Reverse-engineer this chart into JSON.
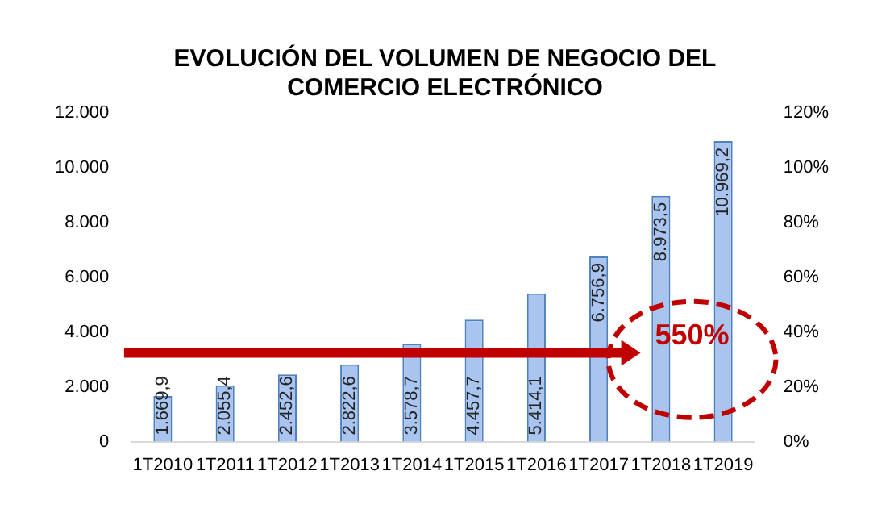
{
  "chart_data": {
    "type": "bar",
    "title": "EVOLUCIÓN DEL VOLUMEN DE NEGOCIO DEL COMERCIO ELECTRÓNICO",
    "categories": [
      "1T2010",
      "1T2011",
      "1T2012",
      "1T2013",
      "1T2014",
      "1T2015",
      "1T2016",
      "1T2017",
      "1T2018",
      "1T2019"
    ],
    "values": [
      1669.9,
      2055.4,
      2452.6,
      2822.6,
      3578.7,
      4457.7,
      5414.1,
      6756.9,
      8973.5,
      10969.2
    ],
    "value_labels": [
      "1.669,9",
      "2.055,4",
      "2.452,6",
      "2.822,6",
      "3.578,7",
      "4.457,7",
      "5.414,1",
      "6.756,9",
      "8.973,5",
      "10.969,2"
    ],
    "color": "#a9c4ee",
    "ylim": [
      0,
      12000
    ],
    "yticks": [
      {
        "value": 0,
        "label": "0"
      },
      {
        "value": 2000,
        "label": "2.000"
      },
      {
        "value": 4000,
        "label": "4.000"
      },
      {
        "value": 6000,
        "label": "6.000"
      },
      {
        "value": 8000,
        "label": "8.000"
      },
      {
        "value": 10000,
        "label": "10.000"
      },
      {
        "value": 12000,
        "label": "12.000"
      }
    ],
    "y2lim": [
      0,
      120
    ],
    "y2ticks": [
      {
        "value": 0,
        "label": "0%"
      },
      {
        "value": 20,
        "label": "20%"
      },
      {
        "value": 40,
        "label": "40%"
      },
      {
        "value": 60,
        "label": "60%"
      },
      {
        "value": 80,
        "label": "80%"
      },
      {
        "value": 100,
        "label": "100%"
      },
      {
        "value": 120,
        "label": "120%"
      }
    ],
    "annotations": [
      "550%"
    ],
    "grid": false,
    "legend": false
  }
}
